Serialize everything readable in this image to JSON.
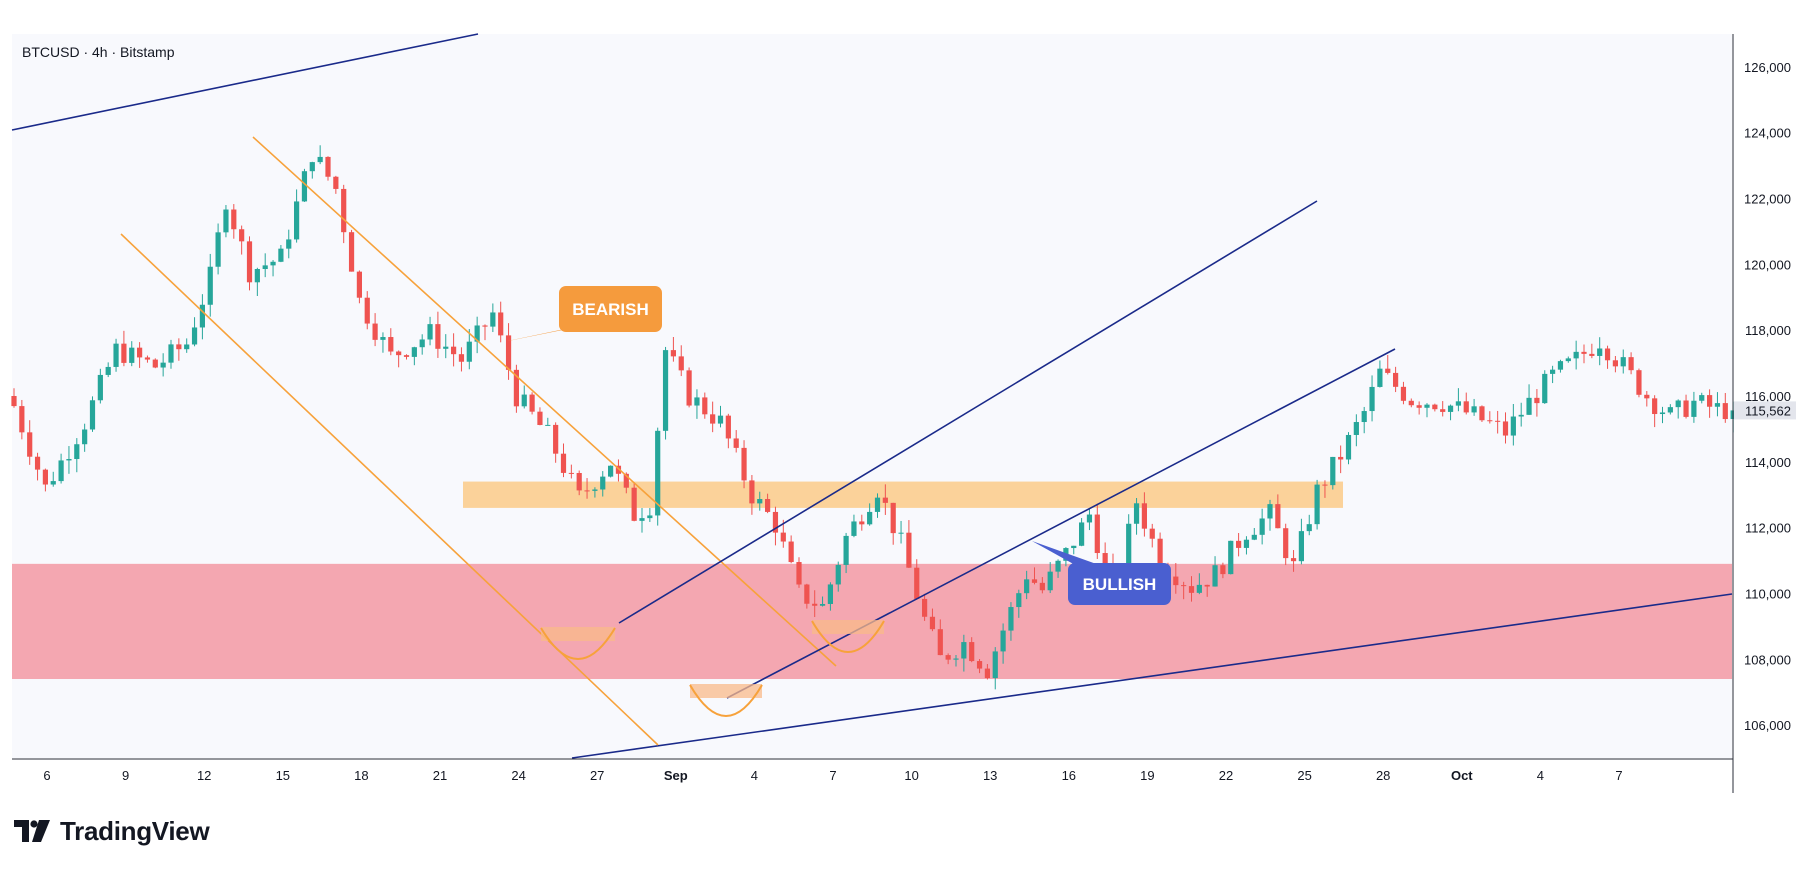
{
  "chart_data": {
    "type": "candlestick",
    "header": "BTCUSD · 4h · Bitstamp",
    "current_price": "115,562",
    "ylim": [
      105000,
      127000
    ],
    "y_ticks": [
      "106,000",
      "108,000",
      "110,000",
      "112,000",
      "114,000",
      "116,000",
      "118,000",
      "120,000",
      "122,000",
      "124,000",
      "126,000"
    ],
    "y_tick_values": [
      106000,
      108000,
      110000,
      112000,
      114000,
      116000,
      118000,
      120000,
      122000,
      124000,
      126000
    ],
    "x_ticks": [
      "6",
      "9",
      "12",
      "15",
      "18",
      "21",
      "24",
      "27",
      "Sep",
      "4",
      "7",
      "10",
      "13",
      "16",
      "19",
      "22",
      "25",
      "28",
      "Oct",
      "4",
      "7"
    ],
    "bold_x_ticks": [
      "Sep",
      "Oct"
    ],
    "colors": {
      "up": "#26a69a",
      "down": "#ef5350",
      "orange": "#f7a23b",
      "channel_blue": "#1a2a8a",
      "support_zone": "#f4a7b1",
      "resistance_zone": "#fbd29a",
      "bullish_label": "#4a5fd0",
      "bearish_label": "#f59b3d"
    },
    "annotations": [
      {
        "label": "BEARISH",
        "type": "callout"
      },
      {
        "label": "BULLISH",
        "type": "callout"
      }
    ],
    "close_path": [
      [
        0,
        115700
      ],
      [
        4,
        113200
      ],
      [
        9,
        115200
      ],
      [
        13,
        117400
      ],
      [
        18,
        116900
      ],
      [
        22,
        117600
      ],
      [
        25,
        119600
      ],
      [
        27,
        122000
      ],
      [
        30,
        119800
      ],
      [
        34,
        120200
      ],
      [
        38,
        123400
      ],
      [
        41,
        122300
      ],
      [
        44,
        118900
      ],
      [
        48,
        117200
      ],
      [
        53,
        117900
      ],
      [
        57,
        117100
      ],
      [
        61,
        118500
      ],
      [
        64,
        116000
      ],
      [
        68,
        114800
      ],
      [
        72,
        112900
      ],
      [
        76,
        114000
      ],
      [
        79,
        112400
      ],
      [
        81,
        112700
      ],
      [
        83,
        117400
      ],
      [
        86,
        116000
      ],
      [
        90,
        115200
      ],
      [
        94,
        113000
      ],
      [
        97,
        112100
      ],
      [
        100,
        110000
      ],
      [
        103,
        109600
      ],
      [
        106,
        111700
      ],
      [
        110,
        113200
      ],
      [
        113,
        111500
      ],
      [
        116,
        109200
      ],
      [
        118,
        108000
      ],
      [
        121,
        108500
      ],
      [
        124,
        107700
      ],
      [
        126,
        108900
      ],
      [
        129,
        110600
      ],
      [
        131,
        110100
      ],
      [
        134,
        111200
      ],
      [
        137,
        112400
      ],
      [
        140,
        109900
      ],
      [
        143,
        112800
      ],
      [
        146,
        111000
      ],
      [
        150,
        110200
      ],
      [
        153,
        110600
      ],
      [
        157,
        111900
      ],
      [
        160,
        112400
      ],
      [
        163,
        110800
      ],
      [
        166,
        113100
      ],
      [
        169,
        114200
      ],
      [
        172,
        115500
      ],
      [
        174,
        116700
      ],
      [
        178,
        115900
      ],
      [
        182,
        115800
      ],
      [
        186,
        115400
      ],
      [
        190,
        114900
      ],
      [
        193,
        115800
      ],
      [
        196,
        116600
      ],
      [
        199,
        117100
      ],
      [
        202,
        117700
      ],
      [
        205,
        116900
      ],
      [
        208,
        116000
      ],
      [
        211,
        115400
      ],
      [
        214,
        115800
      ],
      [
        217,
        115600
      ],
      [
        219,
        115562
      ]
    ]
  }
}
